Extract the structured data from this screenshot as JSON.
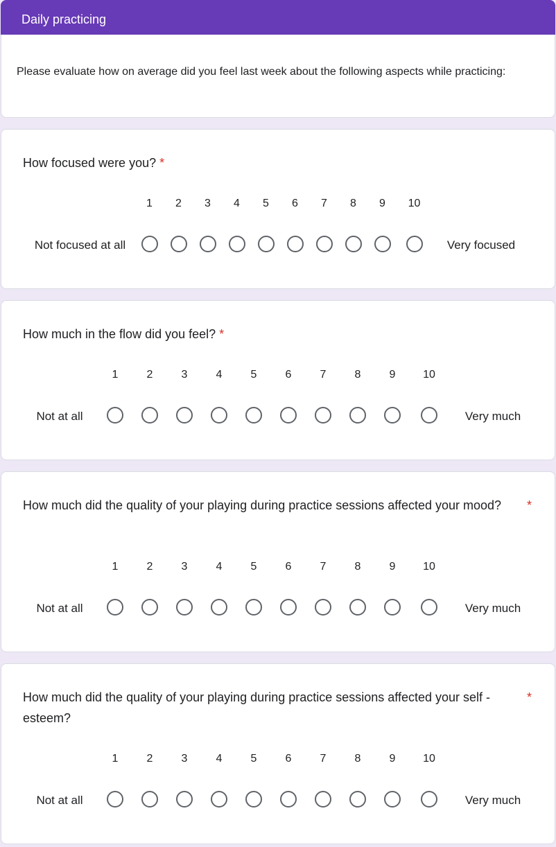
{
  "section_title": "Daily practicing",
  "description": "Please evaluate how on average did you feel last week about the following aspects while practicing:",
  "required_mark": "*",
  "questions": [
    {
      "title": "How focused were you?",
      "low_label": "Not focused at all",
      "high_label": "Very focused",
      "scale": [
        "1",
        "2",
        "3",
        "4",
        "5",
        "6",
        "7",
        "8",
        "9",
        "10"
      ]
    },
    {
      "title": "How much in the flow did you feel?",
      "low_label": "Not at all",
      "high_label": "Very much",
      "scale": [
        "1",
        "2",
        "3",
        "4",
        "5",
        "6",
        "7",
        "8",
        "9",
        "10"
      ]
    },
    {
      "title": "How much did the quality of your playing during practice sessions affected your mood?",
      "low_label": "Not at all",
      "high_label": "Very much",
      "scale": [
        "1",
        "2",
        "3",
        "4",
        "5",
        "6",
        "7",
        "8",
        "9",
        "10"
      ]
    },
    {
      "title": "How much did the quality of your playing during practice sessions affected your self - esteem?",
      "low_label": "Not at all",
      "high_label": "Very much",
      "scale": [
        "1",
        "2",
        "3",
        "4",
        "5",
        "6",
        "7",
        "8",
        "9",
        "10"
      ]
    }
  ]
}
